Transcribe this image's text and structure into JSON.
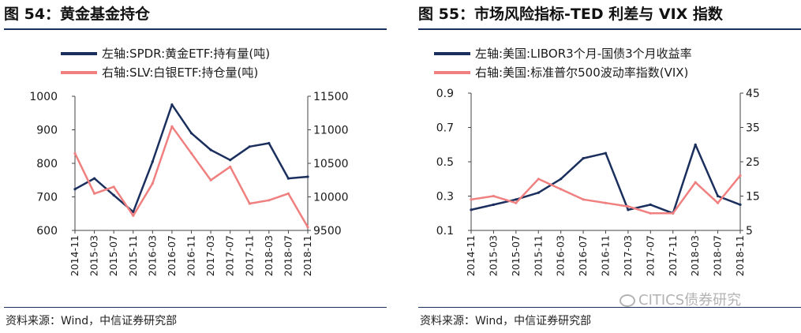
{
  "panels": [
    {
      "figure_title": "图 54：黄金基金持仓",
      "source": "资料来源：Wind，中信证券研究部"
    },
    {
      "figure_title": "图 55：市场风险指标-TED 利差与 VIX 指数",
      "source": "资料来源：Wind，中信证券研究部"
    }
  ],
  "watermark": {
    "text": "CITICS债券研究",
    "icon": "wechat-icon"
  },
  "colors": {
    "navy": "#1b2f5e",
    "salmon": "#f08080",
    "rule": "#1b2f5e"
  },
  "chart_data": [
    {
      "type": "line",
      "title": "",
      "x": [
        "2014-11",
        "2015-03",
        "2015-07",
        "2015-11",
        "2016-03",
        "2016-07",
        "2016-11",
        "2017-03",
        "2017-07",
        "2017-11",
        "2018-03",
        "2018-07",
        "2018-11"
      ],
      "x_tick_labels": [
        "2014-11",
        "2015-03",
        "2015-07",
        "2015-11",
        "2016-03",
        "2016-07",
        "2016-11",
        "2017-03",
        "2017-07",
        "2017-11",
        "2018-03",
        "2018-07",
        "2018-11"
      ],
      "y_left": {
        "ticks": [
          "600",
          "700",
          "800",
          "900",
          "1000"
        ],
        "ylim": [
          600,
          1000
        ]
      },
      "y_right": {
        "ticks": [
          "9500",
          "10000",
          "10500",
          "11000",
          "11500"
        ],
        "ylim": [
          9500,
          11500
        ]
      },
      "legend_position": "top",
      "series": [
        {
          "name": "左轴:SPDR:黄金ETF:持有量(吨)",
          "axis": "left",
          "color": "#1b2f5e",
          "values": [
            723,
            755,
            705,
            655,
            805,
            975,
            890,
            840,
            810,
            850,
            860,
            755,
            760
          ]
        },
        {
          "name": "右轴:SLV:白银ETF:持仓量(吨)",
          "axis": "right",
          "color": "#f08080",
          "values": [
            10650,
            10050,
            10150,
            9720,
            10200,
            11050,
            10650,
            10250,
            10450,
            9900,
            9950,
            10050,
            9550
          ]
        }
      ]
    },
    {
      "type": "line",
      "title": "",
      "x": [
        "2014-11",
        "2015-03",
        "2015-07",
        "2015-11",
        "2016-03",
        "2016-07",
        "2016-11",
        "2017-03",
        "2017-07",
        "2017-11",
        "2018-03",
        "2018-07",
        "2018-11"
      ],
      "x_tick_labels": [
        "2014-11",
        "2015-03",
        "2015-07",
        "2015-11",
        "2016-03",
        "2016-07",
        "2016-11",
        "2017-03",
        "2017-07",
        "2017-11",
        "2018-03",
        "2018-07",
        "2018-11"
      ],
      "y_left": {
        "ticks": [
          "0.1",
          "0.3",
          "0.5",
          "0.7",
          "0.9"
        ],
        "ylim": [
          0.1,
          0.9
        ]
      },
      "y_right": {
        "ticks": [
          "5",
          "15",
          "25",
          "35",
          "45"
        ],
        "ylim": [
          5,
          45
        ]
      },
      "legend_position": "top",
      "series": [
        {
          "name": "左轴:美国:LIBOR3个月-国债3个月收益率",
          "axis": "left",
          "color": "#1b2f5e",
          "values": [
            0.22,
            0.25,
            0.28,
            0.32,
            0.4,
            0.52,
            0.55,
            0.22,
            0.25,
            0.2,
            0.6,
            0.3,
            0.25
          ]
        },
        {
          "name": "右轴:美国:标准普尔500波动率指数(VIX)",
          "axis": "right",
          "color": "#f08080",
          "values": [
            14,
            15,
            13,
            20,
            17,
            14,
            13,
            12,
            10,
            10,
            19,
            13,
            21
          ]
        }
      ]
    }
  ]
}
